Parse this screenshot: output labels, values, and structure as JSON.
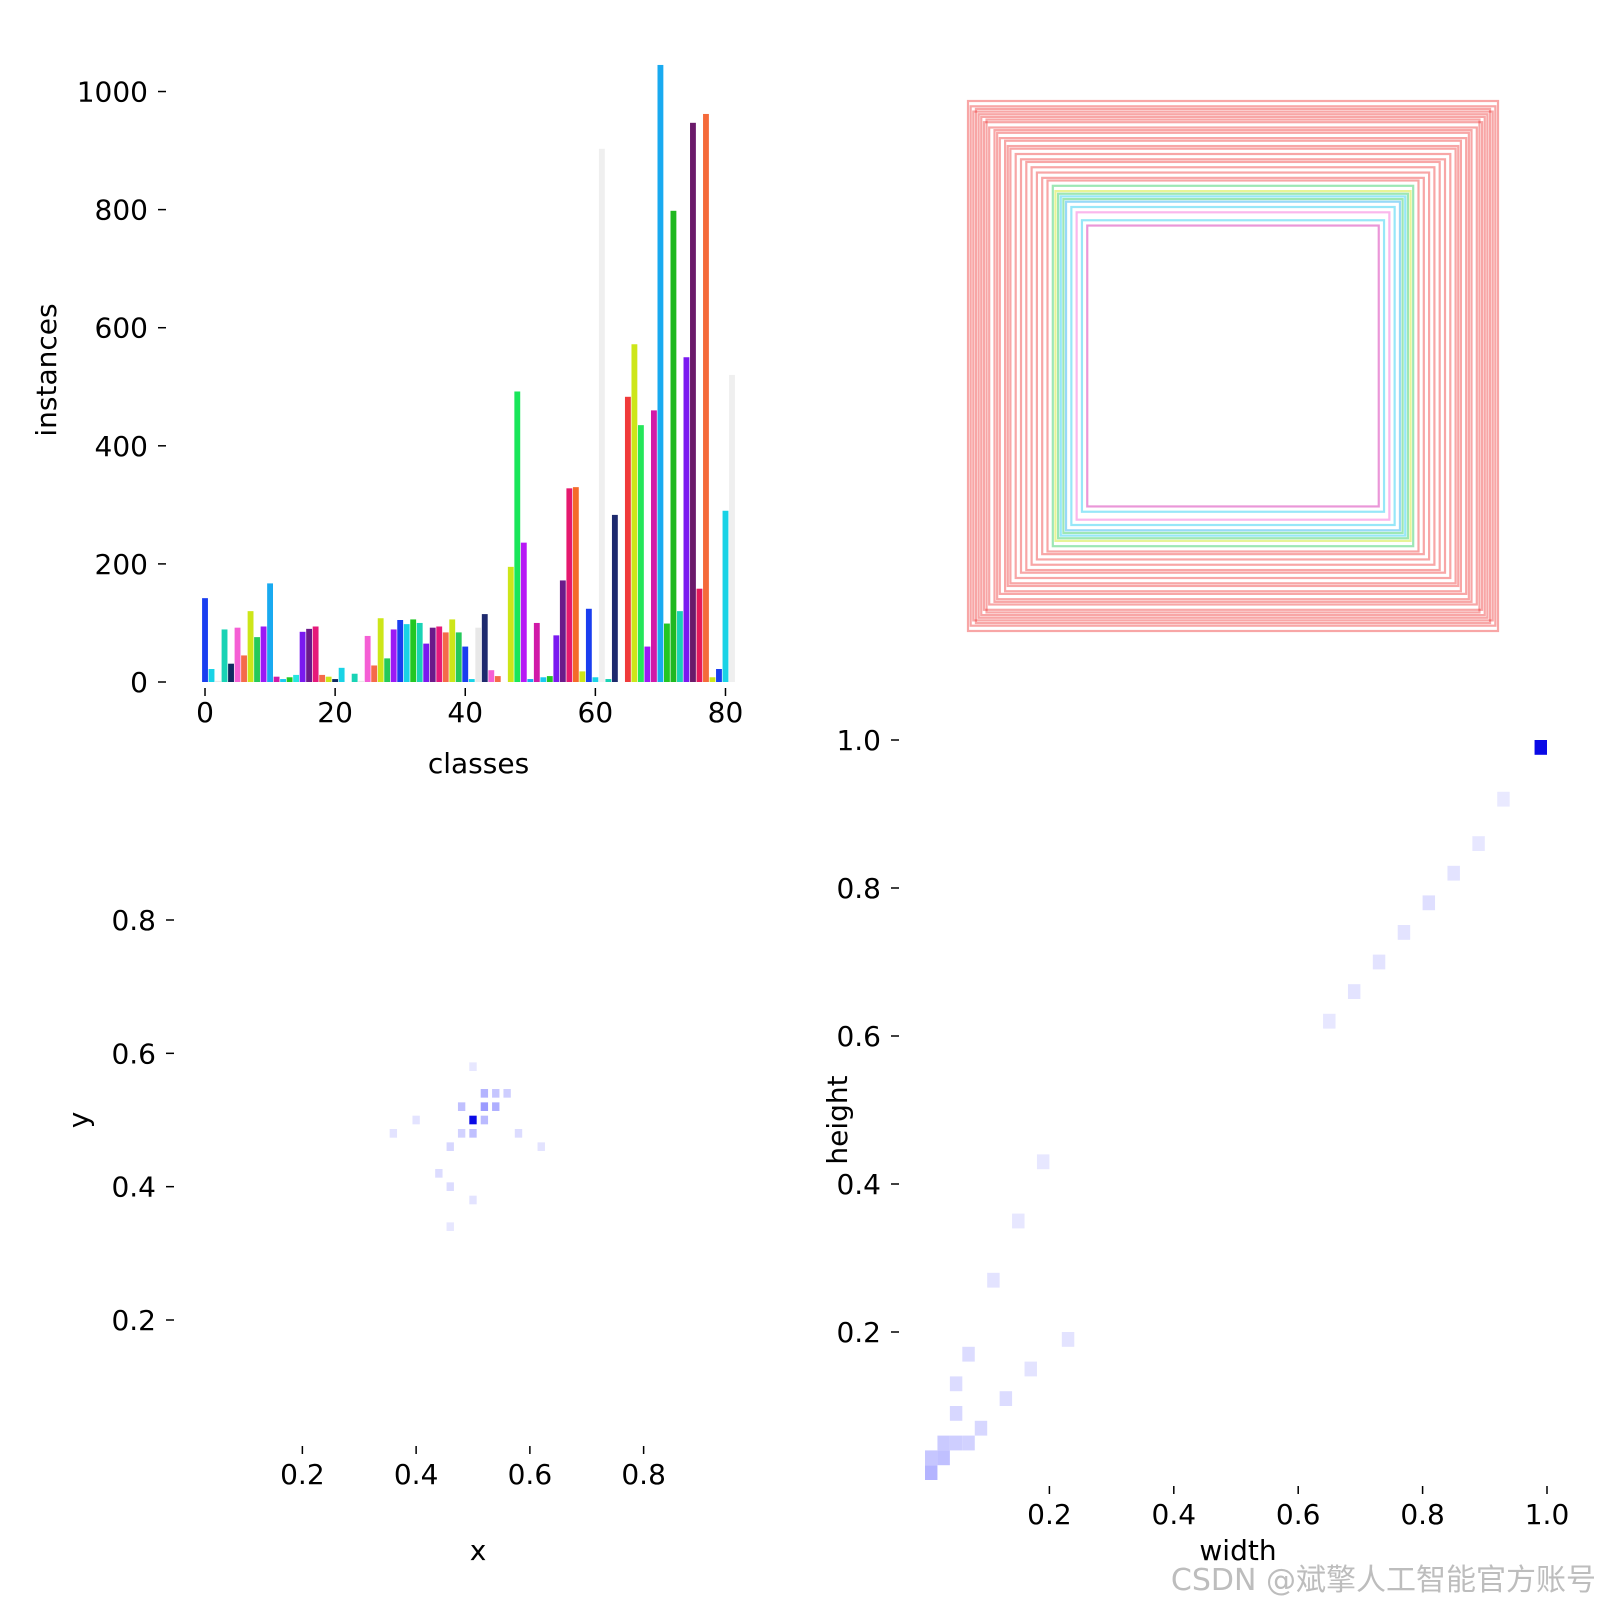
{
  "chart_data": [
    {
      "id": "class-histogram",
      "type": "bar",
      "title": "",
      "xlabel": "classes",
      "ylabel": "instances",
      "xlim": [
        -2,
        83
      ],
      "ylim": [
        0,
        1050
      ],
      "xticks": [
        "0",
        "20",
        "40",
        "60",
        "80"
      ],
      "xtick_values": [
        0,
        20,
        40,
        60,
        80
      ],
      "yticks": [
        "0",
        "200",
        "400",
        "600",
        "800",
        "1000"
      ],
      "ytick_values": [
        0,
        200,
        400,
        600,
        800,
        1000
      ],
      "grid": false,
      "categories": [
        0,
        1,
        2,
        3,
        4,
        5,
        6,
        7,
        8,
        9,
        10,
        11,
        12,
        13,
        14,
        15,
        16,
        17,
        18,
        19,
        20,
        21,
        22,
        23,
        24,
        25,
        26,
        27,
        28,
        29,
        30,
        31,
        32,
        33,
        34,
        35,
        36,
        37,
        38,
        39,
        40,
        41,
        42,
        43,
        44,
        45,
        46,
        47,
        48,
        49,
        50,
        51,
        52,
        53,
        54,
        55,
        56,
        57,
        58,
        59,
        60,
        61,
        62,
        63,
        64,
        65,
        66,
        67,
        68,
        69,
        70,
        71,
        72,
        73,
        74,
        75,
        76,
        77,
        78,
        79,
        80,
        81
      ],
      "values": [
        142,
        22,
        2,
        89,
        31,
        92,
        45,
        120,
        76,
        94,
        167,
        9,
        5,
        8,
        12,
        85,
        90,
        94,
        12,
        9,
        5,
        24,
        0,
        14,
        2,
        78,
        28,
        108,
        40,
        89,
        105,
        98,
        106,
        100,
        65,
        92,
        94,
        84,
        106,
        84,
        60,
        5,
        92,
        115,
        20,
        10,
        0,
        195,
        492,
        236,
        5,
        100,
        8,
        10,
        79,
        172,
        328,
        330,
        18,
        124,
        8,
        903,
        5,
        283,
        0,
        483,
        572,
        435,
        60,
        460,
        1045,
        99,
        798,
        120,
        550,
        947,
        158,
        962,
        8,
        22,
        290,
        520
      ],
      "colors": [
        "#1a3ef0",
        "#19d3e6",
        "#e8e8e8",
        "#19d3b5",
        "#0f2a60",
        "#f55fd5",
        "#f56a4a",
        "#cde619",
        "#25c95a",
        "#9b19f5",
        "#19aaf0",
        "#d019a8",
        "#19c9f0",
        "#23c723",
        "#25e6e0",
        "#7a19f0",
        "#6b1a8a",
        "#e6197a",
        "#f56a4a",
        "#cde619",
        "#0f2a60",
        "#19d3e6",
        "#e8e8e8",
        "#19d3b5",
        "#e8e8e8",
        "#f55fd5",
        "#f56a4a",
        "#cde619",
        "#25c95a",
        "#9b19f5",
        "#1a3ef0",
        "#19d3e6",
        "#23c723",
        "#19d3b5",
        "#7a19f0",
        "#6b1a8a",
        "#e6197a",
        "#f56a4a",
        "#cde619",
        "#25c95a",
        "#1a3ef0",
        "#19d3e6",
        "#e8e8e8",
        "#1e2a6e",
        "#f55fd5",
        "#f56a4a",
        "#e8e8e8",
        "#cde619",
        "#19e65a",
        "#b719f5",
        "#19aaf0",
        "#d019a8",
        "#19c9f0",
        "#23c723",
        "#7a19f0",
        "#6b1a8a",
        "#e6196e",
        "#f56a2a",
        "#cde619",
        "#1a3ef0",
        "#19d3e6",
        "#efefef",
        "#19d3b5",
        "#1e2a6e",
        "#f55fd5",
        "#f03a3a",
        "#cde619",
        "#25e65a",
        "#9b19f5",
        "#d019a8",
        "#19aaf0",
        "#23c723",
        "#1fb81f",
        "#19d3b5",
        "#7a19f0",
        "#6b1a6a",
        "#e6195a",
        "#f56a3a",
        "#cde619",
        "#1a3ef0",
        "#19d3e6",
        "#efefef"
      ]
    },
    {
      "id": "box-overlay",
      "type": "box-overlay",
      "title": "",
      "boxes": [
        {
          "w": 1.0,
          "h": 1.0,
          "color": "#f03a3a"
        },
        {
          "w": 0.99,
          "h": 0.98,
          "color": "#f03a3a"
        },
        {
          "w": 0.98,
          "h": 0.96,
          "color": "#f03a3a"
        },
        {
          "w": 0.97,
          "h": 0.97,
          "color": "#f03a3a"
        },
        {
          "w": 0.96,
          "h": 0.95,
          "color": "#f03a3a"
        },
        {
          "w": 0.95,
          "h": 0.94,
          "color": "#f03a3a"
        },
        {
          "w": 0.94,
          "h": 0.92,
          "color": "#f03a3a"
        },
        {
          "w": 0.93,
          "h": 0.93,
          "color": "#f03a3a"
        },
        {
          "w": 0.92,
          "h": 0.9,
          "color": "#f03a3a"
        },
        {
          "w": 0.9,
          "h": 0.89,
          "color": "#f03a3a"
        },
        {
          "w": 0.89,
          "h": 0.88,
          "color": "#f03a3a"
        },
        {
          "w": 0.88,
          "h": 0.86,
          "color": "#f03a3a"
        },
        {
          "w": 0.86,
          "h": 0.85,
          "color": "#f03a3a"
        },
        {
          "w": 0.85,
          "h": 0.83,
          "color": "#f03a3a"
        },
        {
          "w": 0.84,
          "h": 0.82,
          "color": "#f03a3a"
        },
        {
          "w": 0.82,
          "h": 0.8,
          "color": "#f03a3a"
        },
        {
          "w": 0.8,
          "h": 0.78,
          "color": "#f03a3a"
        },
        {
          "w": 0.78,
          "h": 0.77,
          "color": "#f03a3a"
        },
        {
          "w": 0.76,
          "h": 0.75,
          "color": "#f03a3a"
        },
        {
          "w": 0.74,
          "h": 0.73,
          "color": "#f03a3a"
        },
        {
          "w": 0.72,
          "h": 0.71,
          "color": "#f03a3a"
        },
        {
          "w": 0.7,
          "h": 0.7,
          "color": "#f03a3a"
        },
        {
          "w": 0.68,
          "h": 0.68,
          "color": "#25c95a"
        },
        {
          "w": 0.67,
          "h": 0.66,
          "color": "#cde619"
        },
        {
          "w": 0.66,
          "h": 0.65,
          "color": "#25c95a"
        },
        {
          "w": 0.65,
          "h": 0.64,
          "color": "#19c9f0"
        },
        {
          "w": 0.64,
          "h": 0.63,
          "color": "#25c95a"
        },
        {
          "w": 0.63,
          "h": 0.62,
          "color": "#19aaf0"
        },
        {
          "w": 0.61,
          "h": 0.6,
          "color": "#19c9f0"
        },
        {
          "w": 0.59,
          "h": 0.58,
          "color": "#f55fd5"
        },
        {
          "w": 0.57,
          "h": 0.55,
          "color": "#19c9f0"
        },
        {
          "w": 0.55,
          "h": 0.53,
          "color": "#d019a8"
        }
      ]
    },
    {
      "id": "xy-heatmap",
      "type": "heatmap",
      "title": "",
      "xlabel": "x",
      "ylabel": "y",
      "xlim": [
        0.02,
        0.98
      ],
      "ylim": [
        0.02,
        0.98
      ],
      "xticks": [
        "0.2",
        "0.4",
        "0.6",
        "0.8"
      ],
      "xtick_values": [
        0.2,
        0.4,
        0.6,
        0.8
      ],
      "yticks": [
        "0.2",
        "0.4",
        "0.6",
        "0.8"
      ],
      "ytick_values": [
        0.2,
        0.4,
        0.6,
        0.8
      ],
      "cells": [
        {
          "x": 0.5,
          "y": 0.5,
          "v": 1.0
        },
        {
          "x": 0.52,
          "y": 0.52,
          "v": 0.25
        },
        {
          "x": 0.54,
          "y": 0.52,
          "v": 0.16
        },
        {
          "x": 0.52,
          "y": 0.54,
          "v": 0.14
        },
        {
          "x": 0.48,
          "y": 0.52,
          "v": 0.1
        },
        {
          "x": 0.5,
          "y": 0.48,
          "v": 0.1
        },
        {
          "x": 0.52,
          "y": 0.5,
          "v": 0.12
        },
        {
          "x": 0.54,
          "y": 0.54,
          "v": 0.08
        },
        {
          "x": 0.56,
          "y": 0.54,
          "v": 0.06
        },
        {
          "x": 0.48,
          "y": 0.48,
          "v": 0.05
        },
        {
          "x": 0.46,
          "y": 0.46,
          "v": 0.04
        },
        {
          "x": 0.44,
          "y": 0.42,
          "v": 0.03
        },
        {
          "x": 0.46,
          "y": 0.4,
          "v": 0.03
        },
        {
          "x": 0.58,
          "y": 0.48,
          "v": 0.03
        },
        {
          "x": 0.62,
          "y": 0.46,
          "v": 0.02
        },
        {
          "x": 0.4,
          "y": 0.5,
          "v": 0.02
        },
        {
          "x": 0.36,
          "y": 0.48,
          "v": 0.02
        },
        {
          "x": 0.5,
          "y": 0.38,
          "v": 0.02
        },
        {
          "x": 0.46,
          "y": 0.34,
          "v": 0.015
        },
        {
          "x": 0.5,
          "y": 0.58,
          "v": 0.015
        }
      ]
    },
    {
      "id": "wh-heatmap",
      "type": "heatmap",
      "title": "",
      "xlabel": "width",
      "ylabel": "height",
      "xlim": [
        0.0,
        1.0
      ],
      "ylim": [
        0.0,
        1.0
      ],
      "xticks": [
        "0.2",
        "0.4",
        "0.6",
        "0.8",
        "1.0"
      ],
      "xtick_values": [
        0.2,
        0.4,
        0.6,
        0.8,
        1.0
      ],
      "yticks": [
        "0.2",
        "0.4",
        "0.6",
        "0.8",
        "1.0"
      ],
      "ytick_values": [
        0.2,
        0.4,
        0.6,
        0.8,
        1.0
      ],
      "cells": [
        {
          "x": 0.99,
          "y": 0.99,
          "v": 1.0
        },
        {
          "x": 0.01,
          "y": 0.01,
          "v": 0.14
        },
        {
          "x": 0.03,
          "y": 0.03,
          "v": 0.1
        },
        {
          "x": 0.01,
          "y": 0.03,
          "v": 0.08
        },
        {
          "x": 0.03,
          "y": 0.05,
          "v": 0.07
        },
        {
          "x": 0.05,
          "y": 0.05,
          "v": 0.06
        },
        {
          "x": 0.07,
          "y": 0.05,
          "v": 0.05
        },
        {
          "x": 0.09,
          "y": 0.07,
          "v": 0.04
        },
        {
          "x": 0.05,
          "y": 0.09,
          "v": 0.04
        },
        {
          "x": 0.05,
          "y": 0.13,
          "v": 0.03
        },
        {
          "x": 0.07,
          "y": 0.17,
          "v": 0.03
        },
        {
          "x": 0.13,
          "y": 0.11,
          "v": 0.03
        },
        {
          "x": 0.17,
          "y": 0.15,
          "v": 0.02
        },
        {
          "x": 0.23,
          "y": 0.19,
          "v": 0.02
        },
        {
          "x": 0.11,
          "y": 0.27,
          "v": 0.02
        },
        {
          "x": 0.15,
          "y": 0.35,
          "v": 0.015
        },
        {
          "x": 0.19,
          "y": 0.43,
          "v": 0.015
        },
        {
          "x": 0.65,
          "y": 0.62,
          "v": 0.015
        },
        {
          "x": 0.69,
          "y": 0.66,
          "v": 0.02
        },
        {
          "x": 0.73,
          "y": 0.7,
          "v": 0.02
        },
        {
          "x": 0.77,
          "y": 0.74,
          "v": 0.02
        },
        {
          "x": 0.81,
          "y": 0.78,
          "v": 0.025
        },
        {
          "x": 0.85,
          "y": 0.82,
          "v": 0.02
        },
        {
          "x": 0.89,
          "y": 0.86,
          "v": 0.015
        },
        {
          "x": 0.93,
          "y": 0.92,
          "v": 0.012
        }
      ]
    }
  ],
  "watermark": "CSDN @斌擎人工智能官方账号"
}
